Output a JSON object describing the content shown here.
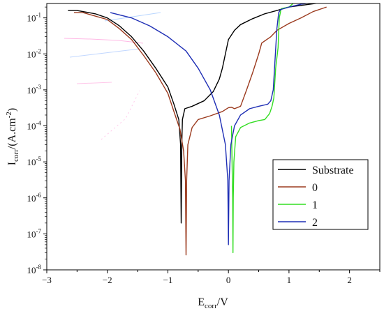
{
  "chart_data": {
    "type": "line",
    "xlabel": {
      "main": "E",
      "sub": "corr",
      "tail": "/V"
    },
    "ylabel": {
      "main": "I",
      "sub": "corr",
      "tail": "/(A.cm",
      "sup": "-2",
      "close": ")"
    },
    "xlim": [
      -3,
      2.5
    ],
    "ylim_log10": [
      -8,
      -0.6
    ],
    "y_scale": "log",
    "grid": false,
    "legend_position": "lower-right",
    "x_ticks": [
      {
        "value": -3,
        "label": "−3"
      },
      {
        "value": -2,
        "label": "−2"
      },
      {
        "value": -1,
        "label": "−1"
      },
      {
        "value": 0,
        "label": "0"
      },
      {
        "value": 1,
        "label": "1"
      },
      {
        "value": 2,
        "label": "2"
      }
    ],
    "y_ticks": [
      {
        "exp": -1,
        "base": "10",
        "sup": "-1"
      },
      {
        "exp": -2,
        "base": "10",
        "sup": "-2"
      },
      {
        "exp": -3,
        "base": "10",
        "sup": "-3"
      },
      {
        "exp": -4,
        "base": "10",
        "sup": "-4"
      },
      {
        "exp": -5,
        "base": "10",
        "sup": "-5"
      },
      {
        "exp": -6,
        "base": "10",
        "sup": "-6"
      },
      {
        "exp": -7,
        "base": "10",
        "sup": "-7"
      },
      {
        "exp": -8,
        "base": "10",
        "sup": "-8"
      }
    ],
    "series": [
      {
        "name": "Substrate",
        "color": "#000000",
        "points": [
          [
            -2.65,
            0.16
          ],
          [
            -2.5,
            0.16
          ],
          [
            -2.2,
            0.13
          ],
          [
            -2.0,
            0.1
          ],
          [
            -1.8,
            0.06
          ],
          [
            -1.6,
            0.03
          ],
          [
            -1.4,
            0.012
          ],
          [
            -1.2,
            0.004
          ],
          [
            -1.0,
            0.0012
          ],
          [
            -0.9,
            0.0004
          ],
          [
            -0.82,
            0.00015
          ],
          [
            -0.79,
            3e-05
          ],
          [
            -0.785,
            2e-06
          ],
          [
            -0.78,
            2e-07
          ],
          [
            -0.775,
            2e-06
          ],
          [
            -0.77,
            3e-05
          ],
          [
            -0.76,
            0.00015
          ],
          [
            -0.72,
            0.0003
          ],
          [
            -0.6,
            0.00035
          ],
          [
            -0.4,
            0.0005
          ],
          [
            -0.25,
            0.0009
          ],
          [
            -0.15,
            0.002
          ],
          [
            -0.1,
            0.004
          ],
          [
            -0.05,
            0.01
          ],
          [
            0.0,
            0.025
          ],
          [
            0.1,
            0.045
          ],
          [
            0.2,
            0.065
          ],
          [
            0.4,
            0.095
          ],
          [
            0.6,
            0.13
          ],
          [
            0.8,
            0.16
          ],
          [
            1.0,
            0.2
          ],
          [
            1.5,
            0.26
          ],
          [
            2.0,
            0.33
          ],
          [
            2.2,
            0.36
          ]
        ]
      },
      {
        "name": "0",
        "color": "#9b3a1e",
        "points": [
          [
            -2.55,
            0.14
          ],
          [
            -2.4,
            0.14
          ],
          [
            -2.0,
            0.09
          ],
          [
            -1.8,
            0.05
          ],
          [
            -1.6,
            0.025
          ],
          [
            -1.4,
            0.009
          ],
          [
            -1.2,
            0.003
          ],
          [
            -1.0,
            0.0008
          ],
          [
            -0.9,
            0.00025
          ],
          [
            -0.8,
            8e-05
          ],
          [
            -0.74,
            2e-05
          ],
          [
            -0.71,
            3e-06
          ],
          [
            -0.7,
            2.6e-08
          ],
          [
            -0.69,
            3e-06
          ],
          [
            -0.67,
            3e-05
          ],
          [
            -0.6,
            9e-05
          ],
          [
            -0.5,
            0.00015
          ],
          [
            -0.3,
            0.00019
          ],
          [
            -0.1,
            0.00025
          ],
          [
            0.0,
            0.00032
          ],
          [
            0.05,
            0.00033
          ],
          [
            0.1,
            0.0003
          ],
          [
            0.2,
            0.00035
          ],
          [
            0.3,
            0.001
          ],
          [
            0.4,
            0.003
          ],
          [
            0.5,
            0.01
          ],
          [
            0.55,
            0.02
          ],
          [
            0.7,
            0.03
          ],
          [
            0.8,
            0.045
          ],
          [
            1.0,
            0.07
          ],
          [
            1.2,
            0.1
          ],
          [
            1.4,
            0.15
          ],
          [
            1.62,
            0.2
          ]
        ]
      },
      {
        "name": "1",
        "color": "#33dd22",
        "points": [
          [
            0.05,
            0.0001
          ],
          [
            0.06,
            1e-05
          ],
          [
            0.07,
            1e-06
          ],
          [
            0.075,
            3e-08
          ],
          [
            0.08,
            1e-06
          ],
          [
            0.09,
            1e-05
          ],
          [
            0.12,
            5e-05
          ],
          [
            0.2,
            9e-05
          ],
          [
            0.35,
            0.00012
          ],
          [
            0.5,
            0.00014
          ],
          [
            0.6,
            0.00015
          ],
          [
            0.68,
            0.00022
          ],
          [
            0.72,
            0.00035
          ],
          [
            0.75,
            0.0006
          ],
          [
            0.78,
            0.004
          ],
          [
            0.82,
            0.015
          ],
          [
            0.84,
            0.1
          ],
          [
            0.87,
            0.18
          ],
          [
            1.0,
            0.2
          ],
          [
            1.1,
            0.28
          ],
          [
            1.3,
            0.32
          ],
          [
            1.6,
            0.35
          ],
          [
            2.0,
            0.37
          ],
          [
            2.3,
            0.4
          ]
        ]
      },
      {
        "name": "2",
        "color": "#1f2fb5",
        "points": [
          [
            -1.95,
            0.14
          ],
          [
            -1.6,
            0.1
          ],
          [
            -1.3,
            0.06
          ],
          [
            -1.0,
            0.03
          ],
          [
            -0.7,
            0.012
          ],
          [
            -0.5,
            0.004
          ],
          [
            -0.3,
            0.001
          ],
          [
            -0.15,
            0.0002
          ],
          [
            -0.05,
            3e-05
          ],
          [
            -0.01,
            3e-06
          ],
          [
            0.0,
            5e-08
          ],
          [
            0.01,
            3e-06
          ],
          [
            0.04,
            3e-05
          ],
          [
            0.1,
            0.0001
          ],
          [
            0.2,
            0.0002
          ],
          [
            0.35,
            0.0003
          ],
          [
            0.5,
            0.00035
          ],
          [
            0.65,
            0.0004
          ],
          [
            0.7,
            0.0005
          ],
          [
            0.74,
            0.001
          ],
          [
            0.77,
            0.007
          ],
          [
            0.8,
            0.05
          ],
          [
            0.83,
            0.14
          ],
          [
            0.86,
            0.17
          ],
          [
            1.0,
            0.2
          ],
          [
            1.2,
            0.24
          ],
          [
            1.6,
            0.3
          ],
          [
            2.0,
            0.34
          ],
          [
            2.2,
            0.36
          ]
        ]
      }
    ]
  }
}
